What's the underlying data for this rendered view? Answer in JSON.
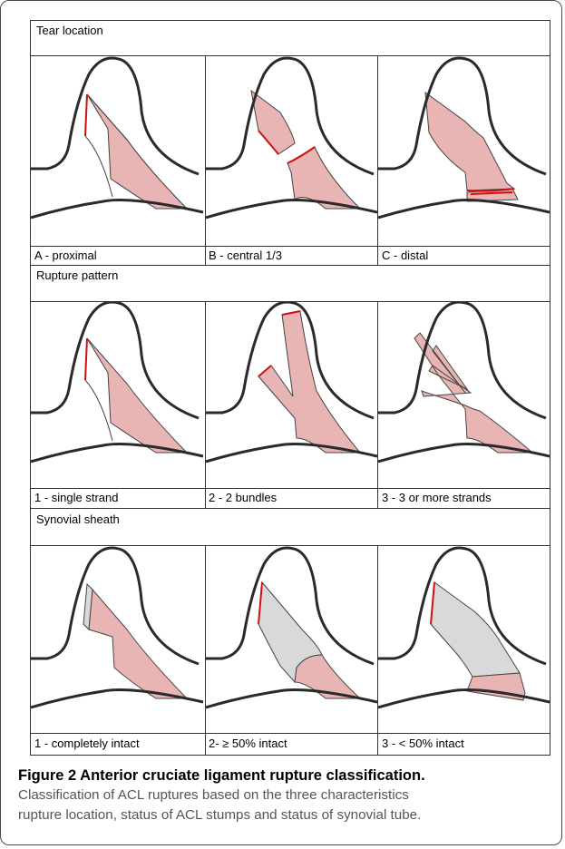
{
  "figure": {
    "title": "Figure 2 Anterior cruciate ligament rupture classification.",
    "caption_line1": "Classification of ACL ruptures based on the three characteristics",
    "caption_line2": "rupture location, status of ACL stumps and status of synovial tube."
  },
  "sections": [
    {
      "header": "Tear location",
      "panels": [
        {
          "label": "A - proximal",
          "variant": "loc-proximal"
        },
        {
          "label": "B - central 1/3",
          "variant": "loc-central"
        },
        {
          "label": "C - distal",
          "variant": "loc-distal"
        }
      ]
    },
    {
      "header": "Rupture pattern",
      "panels": [
        {
          "label": "1 - single strand",
          "variant": "pat-single"
        },
        {
          "label": "2 - 2 bundles",
          "variant": "pat-two"
        },
        {
          "label": "3 - 3 or more strands",
          "variant": "pat-multi"
        }
      ]
    },
    {
      "header": "Synovial sheath",
      "panels": [
        {
          "label": "1 - completely intact",
          "variant": "syn-intact"
        },
        {
          "label": "2- ≥ 50% intact",
          "variant": "syn-half"
        },
        {
          "label": "3 - < 50% intact",
          "variant": "syn-less"
        }
      ]
    }
  ],
  "colors": {
    "ligament": "#e8b4b4",
    "sheath": "#d9d9d9",
    "tear": "#cc1111",
    "bone": "#2a2a2a"
  }
}
